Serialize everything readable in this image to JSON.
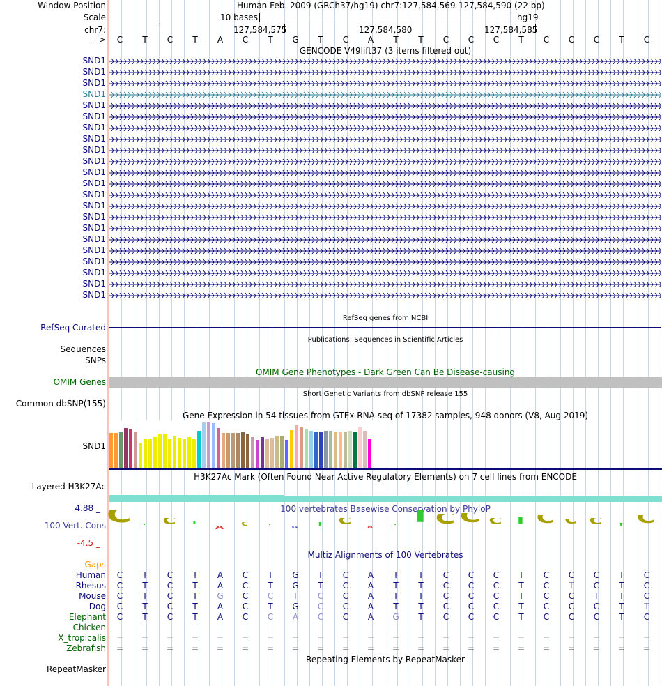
{
  "position_label": "Window Position",
  "position_text": "Human Feb. 2009 (GRCh37/hg19)   chr7:127,584,569-127,584,590 (22 bp)",
  "scale_label": "Scale",
  "scale_text": "10 bases",
  "scale_db": "hg19",
  "chrom_label": "chr7:",
  "coord_ticks": [
    "127,584,575",
    "127,584,580",
    "127,584,585"
  ],
  "strand_label": "--->",
  "sequence": [
    "C",
    "T",
    "C",
    "T",
    "A",
    "C",
    "T",
    "G",
    "T",
    "C",
    "A",
    "T",
    "T",
    "C",
    "C",
    "C",
    "T",
    "C",
    "C",
    "C",
    "T",
    "C"
  ],
  "gencode_title": "GENCODE V49lift37 (3 items filtered out)",
  "gencode_items": [
    "SND1",
    "SND1",
    "SND1",
    "SND1",
    "SND1",
    "SND1",
    "SND1",
    "SND1",
    "SND1",
    "SND1",
    "SND1",
    "SND1",
    "SND1",
    "SND1",
    "SND1",
    "SND1",
    "SND1",
    "SND1",
    "SND1",
    "SND1",
    "SND1",
    "SND1"
  ],
  "refseq_title": "RefSeq genes from NCBI",
  "refseq_label": "RefSeq Curated",
  "pubs_title": "Publications: Sequences in Scientific Articles",
  "sequences_label": "Sequences",
  "snps_label": "SNPs",
  "omim_title": "OMIM Gene Phenotypes - Dark Green Can Be Disease-causing",
  "omim_label": "OMIM Genes",
  "dbsnp_title": "Short Genetic Variants from dbSNP release 155",
  "dbsnp_label": "Common dbSNP(155)",
  "gtex_title": "Gene Expression in 54 tissues from GTEx RNA-seq of 17382 samples, 948 donors (V8, Aug 2019)",
  "gtex_label": "SND1",
  "gtex_values": [
    50,
    50,
    51,
    57,
    56,
    52,
    36,
    42,
    41,
    44,
    49,
    49,
    41,
    45,
    43,
    41,
    44,
    41,
    53,
    65,
    66,
    64,
    57,
    50,
    50,
    50,
    50,
    51,
    49,
    44,
    40,
    44,
    41,
    43,
    45,
    46,
    40,
    54,
    61,
    59,
    56,
    53,
    51,
    52,
    53,
    53,
    52,
    51,
    52,
    53,
    51,
    58,
    53,
    41
  ],
  "gtex_colors": [
    "#ff9933",
    "#ff9933",
    "#669966",
    "#993366",
    "#cc3366",
    "#cc9999",
    "#eeee00",
    "#eeee00",
    "#eeee00",
    "#eeee00",
    "#eeee00",
    "#eeee00",
    "#eeee00",
    "#eeee00",
    "#eeee00",
    "#eeee00",
    "#eeee00",
    "#eeee00",
    "#00cccc",
    "#aaccee",
    "#cc99cc",
    "#99bbff",
    "#cc6699",
    "#ddaa88",
    "#cc9966",
    "#bb9977",
    "#aa8866",
    "#886644",
    "#886644",
    "#cc99aa",
    "#cc44cc",
    "#773399",
    "#ddbb99",
    "#ddbb99",
    "#ccbb88",
    "#aaaa77",
    "#6666ff",
    "#ffcc00",
    "#ffaaaa",
    "#dd9988",
    "#aaddaa",
    "#99ccee",
    "#3366cc",
    "#3344bb",
    "#8899aa",
    "#aabb99",
    "#ddbb88",
    "#ffbb88",
    "#bbbb99",
    "#ccddbb",
    "#007744",
    "#ffcccc",
    "#ddbbbb",
    "#ff00dd"
  ],
  "h3k_title": "H3K27Ac Mark (Often Found Near Active Regulatory Elements) on 7 cell lines from ENCODE",
  "h3k_label": "Layered H3K27Ac",
  "phylop_title": "100 vertebrates Basewise Conservation by PhyloP",
  "phylop_label": "100 Vert. Cons",
  "phylop_max": "4.88 _",
  "phylop_min": "-4.5 _",
  "phylop_values": [
    1.9,
    0.3,
    1.0,
    0.6,
    -0.6,
    0.5,
    0.2,
    -0.4,
    0.5,
    1.0,
    -0.3,
    0.1,
    1.9,
    1.5,
    1.6,
    1.0,
    1.1,
    1.4,
    0.9,
    1.0,
    0.4,
    1.4
  ],
  "gaps_label": "Gaps",
  "multiz_title": "Multiz Alignments of 100 Vertebrates",
  "species": [
    {
      "name": "Human",
      "seq": [
        "C",
        "T",
        "C",
        "T",
        "A",
        "C",
        "T",
        "G",
        "T",
        "C",
        "A",
        "T",
        "T",
        "C",
        "C",
        "C",
        "T",
        "C",
        "C",
        "C",
        "T",
        "C"
      ]
    },
    {
      "name": "Rhesus",
      "seq": [
        "C",
        "T",
        "C",
        "T",
        "A",
        "C",
        "T",
        "G",
        "T",
        "C",
        "A",
        "T",
        "T",
        "C",
        "C",
        "C",
        "T",
        "C",
        "T",
        "C",
        "T",
        "C"
      ]
    },
    {
      "name": "Mouse",
      "seq": [
        "C",
        "T",
        "C",
        "T",
        "G",
        "C",
        "C",
        "T",
        "C",
        "C",
        "A",
        "T",
        "T",
        "C",
        "C",
        "C",
        "T",
        "C",
        "C",
        "T",
        "T",
        "C"
      ]
    },
    {
      "name": "Dog",
      "seq": [
        "C",
        "T",
        "C",
        "T",
        "A",
        "C",
        "T",
        "G",
        "C",
        "C",
        "A",
        "T",
        "T",
        "C",
        "C",
        "C",
        "T",
        "C",
        "C",
        "C",
        "T",
        "T"
      ]
    },
    {
      "name": "Elephant",
      "seq": [
        "C",
        "T",
        "C",
        "T",
        "A",
        "C",
        "C",
        "A",
        "C",
        "C",
        "A",
        "G",
        "T",
        "C",
        "C",
        "C",
        "T",
        "C",
        "C",
        "C",
        "T",
        "C"
      ]
    },
    {
      "name": "Chicken",
      "seq": []
    },
    {
      "name": "X_tropicalis",
      "seq": [
        "=",
        "=",
        "=",
        "=",
        "=",
        "=",
        "=",
        "=",
        "=",
        "=",
        "=",
        "=",
        "=",
        "=",
        "=",
        "=",
        "=",
        "=",
        "=",
        "=",
        "=",
        "="
      ]
    },
    {
      "name": "Zebrafish",
      "seq": [
        "=",
        "=",
        "=",
        "=",
        "=",
        "=",
        "=",
        "=",
        "=",
        "=",
        "=",
        "=",
        "=",
        "=",
        "=",
        "=",
        "=",
        "=",
        "=",
        "=",
        "=",
        "="
      ]
    }
  ],
  "repeat_title": "Repeating Elements by RepeatMasker",
  "repeat_label": "RepeatMasker"
}
